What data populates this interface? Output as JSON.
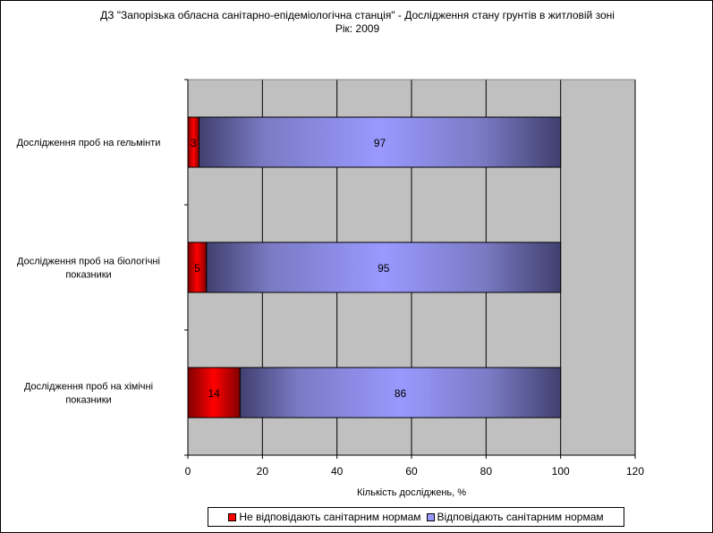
{
  "chart_data": {
    "type": "bar",
    "orientation": "horizontal",
    "stacked": true,
    "title": "ДЗ \"Запорізька обласна санітарно-епідеміологічна станція\" -  Дослідження стану грунтів в житловій зоні",
    "subtitle": "Рік: 2009",
    "xlabel": "Кількість досліджень, %",
    "ylabel": "",
    "xlim": [
      0,
      120
    ],
    "xticks": [
      "0",
      "20",
      "40",
      "60",
      "80",
      "100",
      "120"
    ],
    "categories": [
      "Дослідження проб на гельмінти",
      "Дослідження проб на біологічні показники",
      "Дослідження проб на хімічні показники"
    ],
    "series": [
      {
        "name": "Не відповідають санітарним нормам",
        "values": [
          3,
          5,
          14
        ],
        "color": "#ff0000"
      },
      {
        "name": "Відповідають санітарним нормам",
        "values": [
          97,
          95,
          86
        ],
        "color": "#9999ff"
      }
    ],
    "grid": true,
    "legend_position": "bottom",
    "plot_background": "#c0c0c0"
  }
}
